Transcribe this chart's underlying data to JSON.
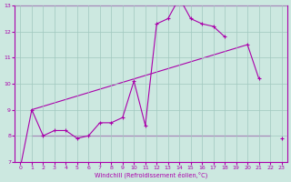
{
  "xlabel": "Windchill (Refroidissement éolien,°C)",
  "background_color": "#cce8e0",
  "grid_color": "#a0c8be",
  "line_color": "#aa00aa",
  "x_hours": [
    0,
    1,
    2,
    3,
    4,
    5,
    6,
    7,
    8,
    9,
    10,
    11,
    12,
    13,
    14,
    15,
    16,
    17,
    18,
    19,
    20,
    21,
    22,
    23
  ],
  "line1_y": [
    6.8,
    9.0,
    8.0,
    8.2,
    8.2,
    7.9,
    8.0,
    8.5,
    8.5,
    8.7,
    10.1,
    8.4,
    12.3,
    12.5,
    13.3,
    12.5,
    12.3,
    12.2,
    11.8,
    null,
    11.5,
    10.2,
    null,
    7.9
  ],
  "trend1_x": [
    1,
    20
  ],
  "trend1_y": [
    9.0,
    11.5
  ],
  "trend2_x": [
    1,
    22
  ],
  "trend2_y": [
    8.0,
    8.0
  ],
  "ylim": [
    7,
    13
  ],
  "xlim": [
    -0.5,
    23.5
  ],
  "yticks": [
    7,
    8,
    9,
    10,
    11,
    12,
    13
  ],
  "xticks": [
    0,
    1,
    2,
    3,
    4,
    5,
    6,
    7,
    8,
    9,
    10,
    11,
    12,
    13,
    14,
    15,
    16,
    17,
    18,
    19,
    20,
    21,
    22,
    23
  ]
}
